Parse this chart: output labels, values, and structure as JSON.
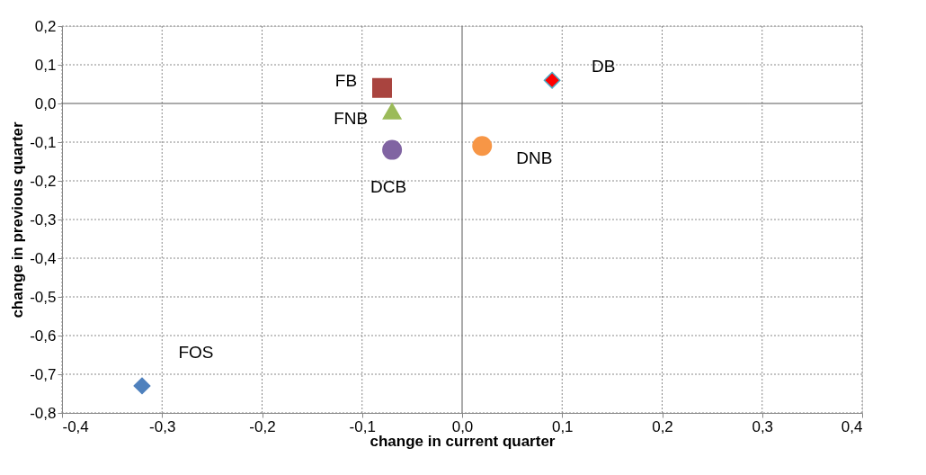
{
  "chart_data": {
    "type": "scatter",
    "xlabel": "change in current quarter",
    "ylabel": "change in previous quarter",
    "xlim": [
      -0.4,
      0.4
    ],
    "ylim": [
      -0.8,
      0.2
    ],
    "xticks": [
      {
        "value": -0.4,
        "label": "-0,4"
      },
      {
        "value": -0.3,
        "label": "-0,3"
      },
      {
        "value": -0.2,
        "label": "-0,2"
      },
      {
        "value": -0.1,
        "label": "-0,1"
      },
      {
        "value": 0,
        "label": "0,0"
      },
      {
        "value": 0.1,
        "label": "0,1"
      },
      {
        "value": 0.2,
        "label": "0,2"
      },
      {
        "value": 0.3,
        "label": "0,3"
      },
      {
        "value": 0.4,
        "label": "0,4"
      }
    ],
    "yticks": [
      {
        "value": -0.8,
        "label": "-0,8"
      },
      {
        "value": -0.7,
        "label": "-0,7"
      },
      {
        "value": -0.6,
        "label": "-0,6"
      },
      {
        "value": -0.5,
        "label": "-0,5"
      },
      {
        "value": -0.4,
        "label": "-0,4"
      },
      {
        "value": -0.3,
        "label": "-0,3"
      },
      {
        "value": -0.2,
        "label": "-0,2"
      },
      {
        "value": -0.1,
        "label": "-0,1"
      },
      {
        "value": 0,
        "label": "0,0"
      },
      {
        "value": 0.1,
        "label": "0,1"
      },
      {
        "value": 0.2,
        "label": "0,2"
      }
    ],
    "grid": true,
    "legend": false,
    "series": [
      {
        "name": "FOS",
        "color": "#4f81bd",
        "marker": "diamond",
        "x": [
          -0.32
        ],
        "values": [
          -0.73
        ]
      },
      {
        "name": "FB",
        "color": "#a9443f",
        "marker": "square",
        "x": [
          -0.08
        ],
        "values": [
          0.04
        ]
      },
      {
        "name": "FNB",
        "color": "#9bbb59",
        "marker": "triangle",
        "x": [
          -0.07
        ],
        "values": [
          -0.02
        ]
      },
      {
        "name": "DCB",
        "color": "#8064a2",
        "marker": "circle",
        "x": [
          -0.07
        ],
        "values": [
          -0.12
        ]
      },
      {
        "name": "DNB",
        "color": "#f79646",
        "marker": "circle",
        "x": [
          0.02
        ],
        "values": [
          -0.11
        ]
      },
      {
        "name": "DB",
        "color": "#ff0000",
        "marker": "diamond",
        "x": [
          0.09
        ],
        "values": [
          0.06
        ]
      }
    ]
  }
}
